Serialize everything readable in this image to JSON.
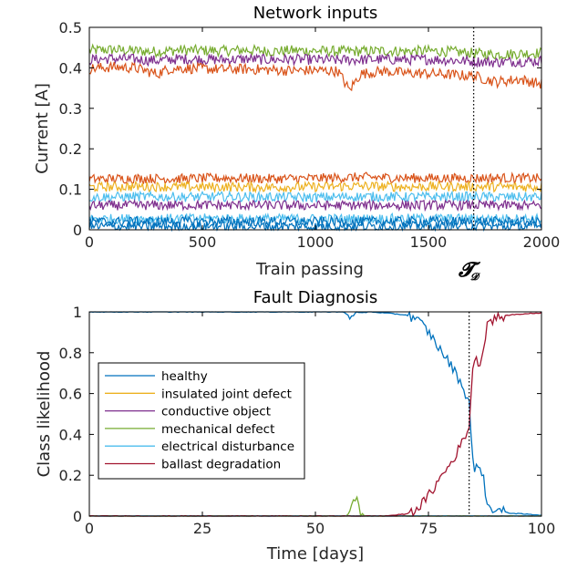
{
  "chart_data": [
    {
      "type": "line",
      "title": "Network inputs",
      "xlabel": "Train passing",
      "ylabel": "Current [A]",
      "xlim": [
        0,
        2000
      ],
      "ylim": [
        0,
        0.5
      ],
      "xticks": [
        0,
        500,
        1000,
        1500,
        2000
      ],
      "yticks": [
        0,
        0.1,
        0.2,
        0.3,
        0.4,
        0.5
      ],
      "xtick_labels": [
        "0",
        "500",
        "1000",
        "1500",
        "2000"
      ],
      "ytick_labels": [
        "0",
        "0.1",
        "0.2",
        "0.3",
        "0.4",
        "0.5"
      ],
      "vline": {
        "x": 1700,
        "style": "dotted",
        "label_main": "𝓣",
        "label_sub": "𝓓"
      },
      "series": [
        {
          "color": "#77AC30",
          "values": [
            [
              0,
              0.443
            ],
            [
              100,
              0.445
            ],
            [
              200,
              0.442
            ],
            [
              300,
              0.44
            ],
            [
              400,
              0.444
            ],
            [
              500,
              0.443
            ],
            [
              600,
              0.442
            ],
            [
              700,
              0.444
            ],
            [
              800,
              0.441
            ],
            [
              900,
              0.443
            ],
            [
              1000,
              0.442
            ],
            [
              1100,
              0.441
            ],
            [
              1200,
              0.441
            ],
            [
              1300,
              0.442
            ],
            [
              1400,
              0.441
            ],
            [
              1500,
              0.442
            ],
            [
              1600,
              0.44
            ],
            [
              1700,
              0.436
            ],
            [
              1800,
              0.433
            ],
            [
              1900,
              0.435
            ],
            [
              2000,
              0.437
            ]
          ]
        },
        {
          "color": "#7E2F8E",
          "values": [
            [
              0,
              0.42
            ],
            [
              100,
              0.423
            ],
            [
              200,
              0.421
            ],
            [
              300,
              0.418
            ],
            [
              400,
              0.422
            ],
            [
              500,
              0.421
            ],
            [
              600,
              0.42
            ],
            [
              700,
              0.422
            ],
            [
              800,
              0.42
            ],
            [
              900,
              0.421
            ],
            [
              1000,
              0.42
            ],
            [
              1100,
              0.419
            ],
            [
              1200,
              0.42
            ],
            [
              1300,
              0.421
            ],
            [
              1400,
              0.42
            ],
            [
              1500,
              0.421
            ],
            [
              1600,
              0.419
            ],
            [
              1700,
              0.416
            ],
            [
              1800,
              0.414
            ],
            [
              1900,
              0.416
            ],
            [
              2000,
              0.417
            ]
          ]
        },
        {
          "color": "#D95319",
          "values": [
            [
              0,
              0.398
            ],
            [
              100,
              0.402
            ],
            [
              200,
              0.4
            ],
            [
              300,
              0.385
            ],
            [
              350,
              0.397
            ],
            [
              400,
              0.399
            ],
            [
              500,
              0.398
            ],
            [
              600,
              0.396
            ],
            [
              700,
              0.397
            ],
            [
              800,
              0.395
            ],
            [
              900,
              0.393
            ],
            [
              1000,
              0.394
            ],
            [
              1100,
              0.392
            ],
            [
              1150,
              0.345
            ],
            [
              1200,
              0.385
            ],
            [
              1300,
              0.392
            ],
            [
              1400,
              0.387
            ],
            [
              1500,
              0.386
            ],
            [
              1600,
              0.383
            ],
            [
              1700,
              0.38
            ],
            [
              1800,
              0.365
            ],
            [
              1900,
              0.372
            ],
            [
              2000,
              0.36
            ]
          ]
        },
        {
          "color": "#D95319",
          "values": [
            [
              0,
              0.125
            ],
            [
              200,
              0.127
            ],
            [
              400,
              0.126
            ],
            [
              600,
              0.128
            ],
            [
              800,
              0.126
            ],
            [
              1000,
              0.127
            ],
            [
              1200,
              0.13
            ],
            [
              1400,
              0.128
            ],
            [
              1600,
              0.127
            ],
            [
              1800,
              0.128
            ],
            [
              2000,
              0.127
            ]
          ]
        },
        {
          "color": "#EDB120",
          "values": [
            [
              0,
              0.105
            ],
            [
              200,
              0.107
            ],
            [
              400,
              0.106
            ],
            [
              600,
              0.106
            ],
            [
              800,
              0.105
            ],
            [
              1000,
              0.106
            ],
            [
              1200,
              0.108
            ],
            [
              1400,
              0.106
            ],
            [
              1600,
              0.107
            ],
            [
              1800,
              0.106
            ],
            [
              2000,
              0.106
            ]
          ]
        },
        {
          "color": "#4DBEEE",
          "values": [
            [
              0,
              0.08
            ],
            [
              200,
              0.082
            ],
            [
              400,
              0.081
            ],
            [
              600,
              0.082
            ],
            [
              800,
              0.081
            ],
            [
              1000,
              0.08
            ],
            [
              1200,
              0.082
            ],
            [
              1400,
              0.081
            ],
            [
              1600,
              0.082
            ],
            [
              1800,
              0.081
            ],
            [
              2000,
              0.081
            ]
          ]
        },
        {
          "color": "#7E2F8E",
          "values": [
            [
              0,
              0.06
            ],
            [
              500,
              0.061
            ],
            [
              1000,
              0.06
            ],
            [
              1500,
              0.061
            ],
            [
              2000,
              0.06
            ]
          ]
        },
        {
          "color": "#4DBEEE",
          "values": [
            [
              0,
              0.027
            ],
            [
              500,
              0.028
            ],
            [
              1000,
              0.027
            ],
            [
              1500,
              0.028
            ],
            [
              2000,
              0.027
            ]
          ]
        },
        {
          "color": "#0072BD",
          "values": [
            [
              0,
              0.02
            ],
            [
              500,
              0.021
            ],
            [
              1000,
              0.02
            ],
            [
              1500,
              0.021
            ],
            [
              2000,
              0.02
            ]
          ]
        },
        {
          "color": "#0072BD",
          "values": [
            [
              0,
              0.008
            ],
            [
              500,
              0.009
            ],
            [
              1000,
              0.008
            ],
            [
              1500,
              0.009
            ],
            [
              2000,
              0.008
            ]
          ]
        }
      ]
    },
    {
      "type": "line",
      "title": "Fault Diagnosis",
      "xlabel": "Time [days]",
      "ylabel": "Class likelihood",
      "xlim": [
        0,
        100
      ],
      "ylim": [
        0,
        1
      ],
      "xticks": [
        0,
        25,
        50,
        75,
        100
      ],
      "yticks": [
        0,
        0.2,
        0.4,
        0.6,
        0.8,
        1
      ],
      "xtick_labels": [
        "0",
        "25",
        "50",
        "75",
        "100"
      ],
      "ytick_labels": [
        "0",
        "0.2",
        "0.4",
        "0.6",
        "0.8",
        "1"
      ],
      "vline": {
        "x": 84,
        "style": "dotted"
      },
      "legend_position": "left",
      "series": [
        {
          "name": "healthy",
          "color": "#0072BD",
          "values": [
            [
              0,
              1
            ],
            [
              56,
              1
            ],
            [
              57,
              0.99
            ],
            [
              58,
              0.97
            ],
            [
              59,
              1
            ],
            [
              60,
              0.995
            ],
            [
              62,
              1
            ],
            [
              65,
              0.995
            ],
            [
              70,
              0.985
            ],
            [
              72,
              0.97
            ],
            [
              74,
              0.93
            ],
            [
              76,
              0.87
            ],
            [
              78,
              0.8
            ],
            [
              80,
              0.74
            ],
            [
              82,
              0.66
            ],
            [
              84,
              0.56
            ],
            [
              85,
              0.2
            ],
            [
              86,
              0.26
            ],
            [
              87,
              0.21
            ],
            [
              88,
              0.05
            ],
            [
              90,
              0.03
            ],
            [
              93,
              0.015
            ],
            [
              96,
              0.01
            ],
            [
              100,
              0.005
            ]
          ]
        },
        {
          "name": "insulated joint defect",
          "color": "#EDB120",
          "values": [
            [
              0,
              0
            ],
            [
              100,
              0
            ]
          ]
        },
        {
          "name": "conductive object",
          "color": "#7E2F8E",
          "values": [
            [
              0,
              0
            ],
            [
              100,
              0
            ]
          ]
        },
        {
          "name": "mechanical defect",
          "color": "#77AC30",
          "values": [
            [
              0,
              0
            ],
            [
              57,
              0
            ],
            [
              58,
              0.04
            ],
            [
              59,
              0.11
            ],
            [
              60,
              0.02
            ],
            [
              61,
              0
            ],
            [
              100,
              0
            ]
          ]
        },
        {
          "name": "electrical disturbance",
          "color": "#4DBEEE",
          "values": [
            [
              0,
              0
            ],
            [
              100,
              0
            ]
          ]
        },
        {
          "name": "ballast degradation",
          "color": "#A2142F",
          "values": [
            [
              0,
              0
            ],
            [
              65,
              0
            ],
            [
              70,
              0.01
            ],
            [
              72,
              0.03
            ],
            [
              74,
              0.07
            ],
            [
              76,
              0.13
            ],
            [
              78,
              0.2
            ],
            [
              80,
              0.26
            ],
            [
              82,
              0.34
            ],
            [
              84,
              0.44
            ],
            [
              85,
              0.79
            ],
            [
              86,
              0.74
            ],
            [
              87,
              0.79
            ],
            [
              88,
              0.95
            ],
            [
              90,
              0.97
            ],
            [
              93,
              0.985
            ],
            [
              96,
              0.99
            ],
            [
              100,
              0.995
            ]
          ]
        }
      ]
    }
  ]
}
